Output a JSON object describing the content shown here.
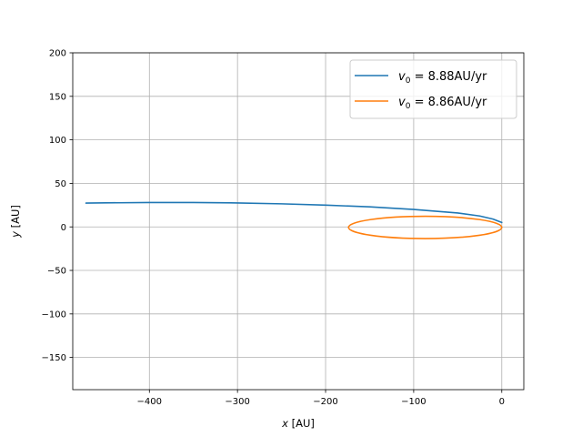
{
  "chart_data": {
    "type": "line",
    "xlabel_var": "x",
    "xlabel_unit": "[AU]",
    "ylabel_var": "y",
    "ylabel_unit": "[AU]",
    "xlim": [
      -487,
      25
    ],
    "ylim": [
      -187,
      200
    ],
    "xticks": [
      -400,
      -300,
      -200,
      -100,
      0
    ],
    "xtick_labels": [
      "−400",
      "−300",
      "−200",
      "−100",
      "0"
    ],
    "yticks": [
      -150,
      -100,
      -50,
      0,
      50,
      100,
      150,
      200
    ],
    "ytick_labels": [
      "−150",
      "−100",
      "−50",
      "0",
      "50",
      "100",
      "150",
      "200"
    ],
    "grid": true,
    "legend_position": "upper right",
    "series": [
      {
        "name": "v0 = 8.88AU/yr",
        "legend_var": "v",
        "legend_sub": "0",
        "legend_rest": " = 8.88AU/yr",
        "color": "#1f77b4",
        "kind": "open-orbit",
        "points": [
          [
            0,
            5
          ],
          [
            -10,
            9
          ],
          [
            -25,
            12.5
          ],
          [
            -50,
            16
          ],
          [
            -100,
            20
          ],
          [
            -150,
            23
          ],
          [
            -200,
            25
          ],
          [
            -250,
            26.5
          ],
          [
            -300,
            27.5
          ],
          [
            -350,
            28
          ],
          [
            -400,
            28
          ],
          [
            -450,
            27.6
          ],
          [
            -472,
            27.3
          ]
        ]
      },
      {
        "name": "v0 = 8.86AU/yr",
        "legend_var": "v",
        "legend_sub": "0",
        "legend_rest": " = 8.86AU/yr",
        "color": "#ff7f0e",
        "kind": "ellipse",
        "center": [
          -87,
          -0.6
        ],
        "semi_axis_x": 87,
        "semi_axis_y": 12.8
      }
    ]
  }
}
